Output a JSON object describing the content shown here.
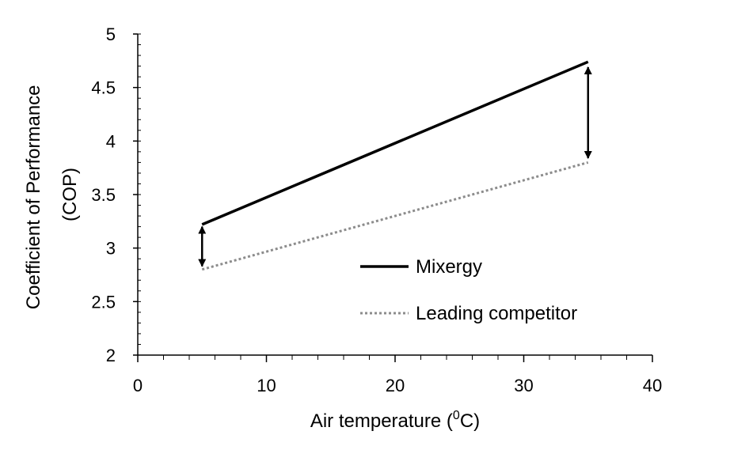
{
  "chart_data": {
    "type": "line",
    "xlabel": "Air temperature (",
    "xlabel_sup": "0",
    "xlabel_suffix": "C)",
    "ylabel_line1": "Coefficient of Performance",
    "ylabel_line2": "(COP)",
    "xlim": [
      0,
      40
    ],
    "ylim": [
      2,
      5
    ],
    "x_ticks": [
      0,
      10,
      20,
      30,
      40
    ],
    "x_tick_labels": [
      "0",
      "10",
      "20",
      "30",
      "40"
    ],
    "y_ticks": [
      2,
      2.5,
      3,
      3.5,
      4,
      4.5,
      5
    ],
    "y_tick_labels": [
      "2",
      "2.5",
      "3",
      "3.5",
      "4",
      "4.5",
      "5"
    ],
    "x_minor_step": 2,
    "y_minor_step": 0.1,
    "grid": false,
    "legend_position": "lower-right",
    "series": [
      {
        "name": "Mixergy",
        "x": [
          5,
          35
        ],
        "y": [
          3.22,
          4.74
        ],
        "style": "solid",
        "color": "#000000"
      },
      {
        "name": "Leading competitor",
        "x": [
          5,
          35
        ],
        "y": [
          2.8,
          3.8
        ],
        "style": "dotted",
        "color": "#8c8c8c"
      }
    ],
    "annotations": [
      {
        "type": "double-arrow",
        "x": 5,
        "y_from": 3.2,
        "y_to": 2.83
      },
      {
        "type": "double-arrow",
        "x": 35,
        "y_from": 4.69,
        "y_to": 3.84
      }
    ]
  }
}
